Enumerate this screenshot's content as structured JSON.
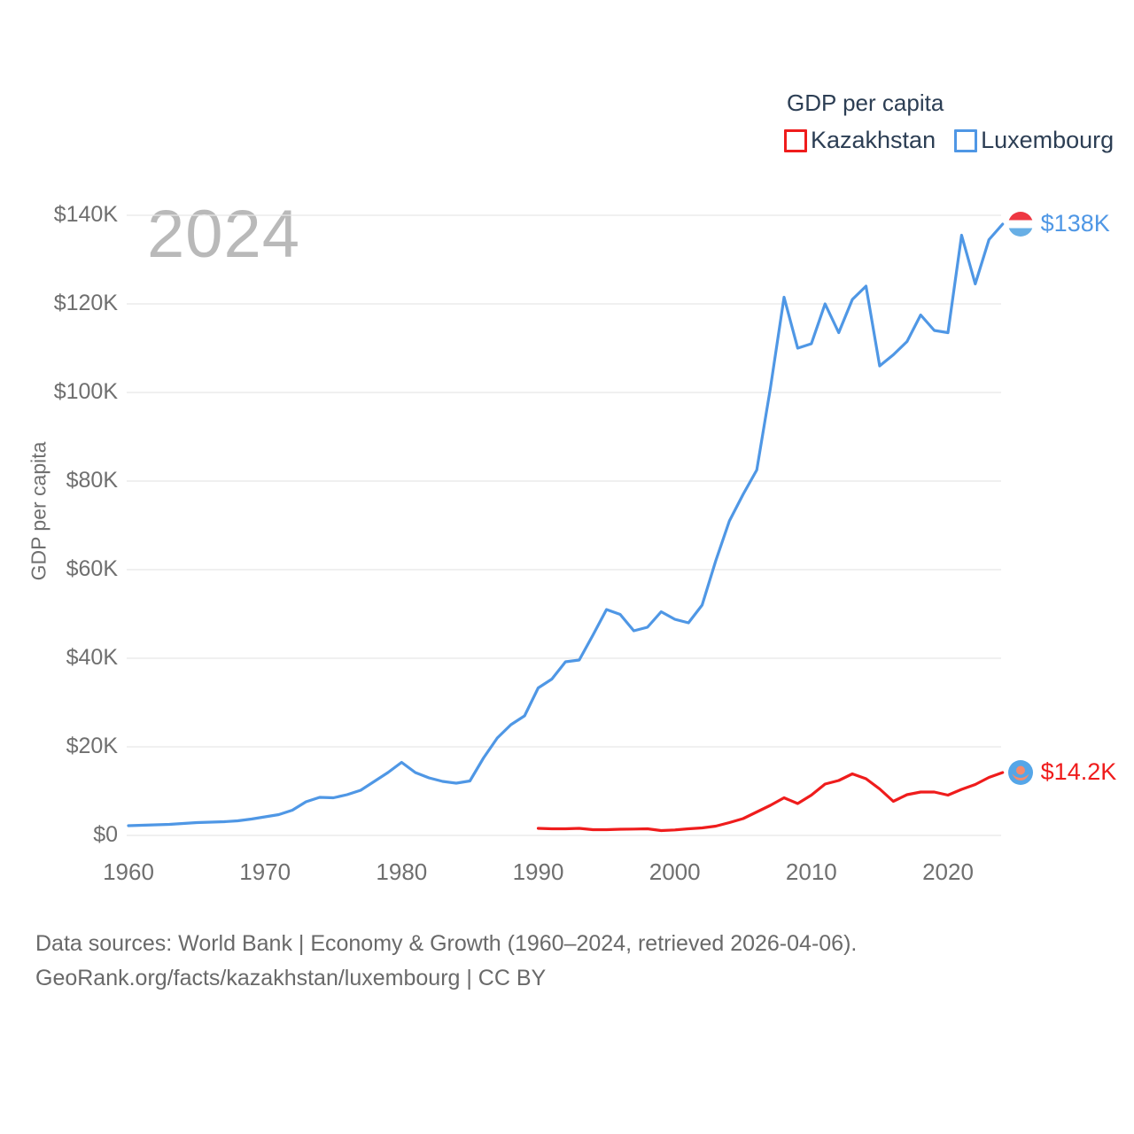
{
  "legend": {
    "title": "GDP per capita",
    "items": [
      {
        "label": "Kazakhstan",
        "color": "#ef1c1c"
      },
      {
        "label": "Luxembourg",
        "color": "#4f97e5"
      }
    ]
  },
  "watermark": "2024",
  "end_labels": [
    {
      "series": "Luxembourg",
      "text": "$138K",
      "color": "#4f97e5",
      "flag": "luxembourg-flag"
    },
    {
      "series": "Kazakhstan",
      "text": "$14.2K",
      "color": "#ef1c1c",
      "flag": "kazakhstan-flag"
    }
  ],
  "footer": {
    "line1": "Data sources: World Bank | Economy & Growth (1960–2024, retrieved 2026-04-06).",
    "line2": "GeoRank.org/facts/kazakhstan/luxembourg | CC BY"
  },
  "colors": {
    "kazakhstan_line": "#ef1c1c",
    "luxembourg_line": "#4f97e5",
    "gridline": "#e8e8e8",
    "axis_text": "#6f6f6f",
    "legend_text": "#2c3e54",
    "watermark_text": "#b9b9b9"
  },
  "chart_data": {
    "type": "line",
    "title": "GDP per capita",
    "xlabel": "",
    "ylabel": "GDP per capita",
    "xlim": [
      1960,
      2024
    ],
    "ylim": [
      0,
      140000
    ],
    "grid": true,
    "legend_position": "top-right",
    "yticks": [
      {
        "value": 0,
        "label": "$0"
      },
      {
        "value": 20000,
        "label": "$20K"
      },
      {
        "value": 40000,
        "label": "$40K"
      },
      {
        "value": 60000,
        "label": "$60K"
      },
      {
        "value": 80000,
        "label": "$80K"
      },
      {
        "value": 100000,
        "label": "$100K"
      },
      {
        "value": 120000,
        "label": "$120K"
      },
      {
        "value": 140000,
        "label": "$140K"
      }
    ],
    "xticks": [
      {
        "value": 1960,
        "label": "1960"
      },
      {
        "value": 1970,
        "label": "1970"
      },
      {
        "value": 1980,
        "label": "1980"
      },
      {
        "value": 1990,
        "label": "1990"
      },
      {
        "value": 2000,
        "label": "2000"
      },
      {
        "value": 2010,
        "label": "2010"
      },
      {
        "value": 2020,
        "label": "2020"
      }
    ],
    "series": [
      {
        "name": "Luxembourg",
        "color": "#4f97e5",
        "start_year": 1960,
        "values": [
          2200,
          2300,
          2400,
          2500,
          2700,
          2900,
          3000,
          3100,
          3300,
          3700,
          4200,
          4700,
          5700,
          7600,
          8600,
          8500,
          9200,
          10200,
          12200,
          14200,
          16500,
          14200,
          13000,
          12200,
          11800,
          12300,
          17500,
          22000,
          25000,
          27000,
          33300,
          35300,
          39200,
          39600,
          45200,
          51000,
          49900,
          46200,
          47000,
          50500,
          48800,
          48000,
          52000,
          62000,
          71000,
          77000,
          82500,
          101000,
          121500,
          110000,
          111000,
          120000,
          113500,
          121000,
          124000,
          106000,
          108500,
          111500,
          117500,
          114000,
          113500,
          135500,
          124500,
          134500,
          138000
        ]
      },
      {
        "name": "Kazakhstan",
        "color": "#ef1c1c",
        "start_year": 1990,
        "values": [
          1600,
          1500,
          1500,
          1600,
          1300,
          1300,
          1400,
          1450,
          1500,
          1100,
          1250,
          1500,
          1700,
          2100,
          2900,
          3800,
          5300,
          6800,
          8500,
          7200,
          9100,
          11600,
          12400,
          13900,
          12800,
          10500,
          7700,
          9200,
          9800,
          9800,
          9100,
          10400,
          11500,
          13100,
          14200
        ]
      }
    ]
  }
}
